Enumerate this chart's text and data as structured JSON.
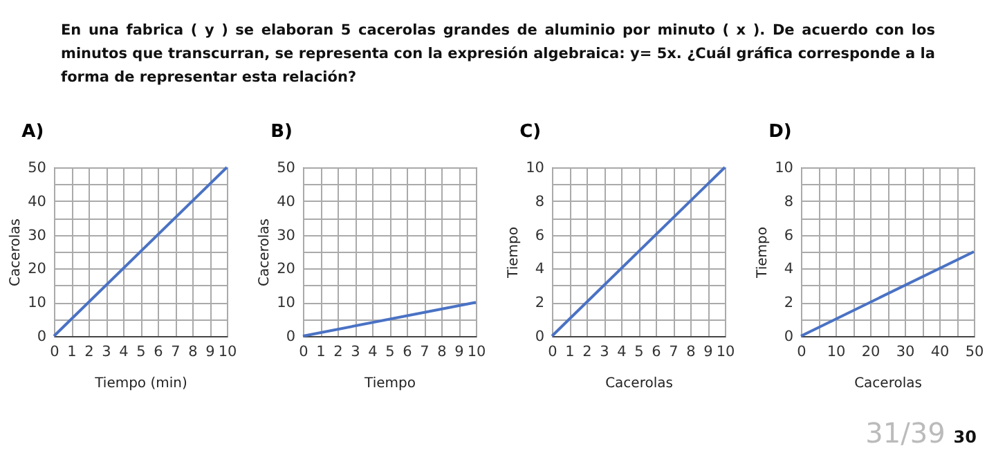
{
  "chart_data": [
    {
      "type": "line",
      "title": "A)",
      "annotations": [
        "En una fabrica ( y ) se elaboran 5 cacerolas grandes de aluminio por minuto ( x ). De acuerdo con los minutos que transcurran, se representa con la expresión algebraica: y= 5x. ¿Cuál gráfica corresponde a la forma de representar esta relación?"
      ],
      "xlabel": "Tiempo (min)",
      "ylabel": "Cacerolas",
      "x": [
        0,
        10
      ],
      "series": [
        {
          "color": "#4a72c4",
          "values": [
            0,
            50
          ]
        }
      ],
      "xlim": [
        0,
        10
      ],
      "xticks": [
        0,
        1,
        2,
        3,
        4,
        5,
        6,
        7,
        8,
        9,
        10
      ],
      "ylim": [
        0,
        50
      ],
      "yticks": [
        0,
        {
          "value": 5,
          "label": null
        },
        10,
        {
          "value": 15,
          "label": null
        },
        20,
        {
          "value": 25,
          "label": null
        },
        30,
        {
          "value": 35,
          "label": null
        },
        40,
        {
          "value": 45,
          "label": null
        },
        50
      ],
      "grid": true,
      "legend": false,
      "marker": "none",
      "line_style": "solid"
    },
    {
      "type": "line",
      "title": "B)",
      "xlabel": "Tiempo",
      "ylabel": "Cacerolas",
      "x": [
        0,
        10
      ],
      "series": [
        {
          "color": "#4a72c4",
          "values": [
            0,
            10
          ]
        }
      ],
      "xlim": [
        0,
        10
      ],
      "xticks": [
        0,
        1,
        2,
        3,
        4,
        5,
        6,
        7,
        8,
        9,
        10
      ],
      "ylim": [
        0,
        50
      ],
      "yticks": [
        0,
        {
          "value": 5,
          "label": null
        },
        10,
        {
          "value": 15,
          "label": null
        },
        20,
        {
          "value": 25,
          "label": null
        },
        30,
        {
          "value": 35,
          "label": null
        },
        40,
        {
          "value": 45,
          "label": null
        },
        50
      ],
      "grid": true,
      "legend": false,
      "marker": "none",
      "line_style": "solid"
    },
    {
      "type": "line",
      "title": "C)",
      "xlabel": "Cacerolas",
      "ylabel": "Tiempo",
      "x": [
        0,
        10
      ],
      "series": [
        {
          "color": "#4a72c4",
          "values": [
            0,
            10
          ]
        }
      ],
      "xlim": [
        0,
        10
      ],
      "xticks": [
        0,
        1,
        2,
        3,
        4,
        5,
        6,
        7,
        8,
        9,
        10
      ],
      "ylim": [
        0,
        10
      ],
      "yticks": [
        0,
        {
          "value": 1,
          "label": null
        },
        2,
        {
          "value": 3,
          "label": null
        },
        4,
        {
          "value": 5,
          "label": null
        },
        6,
        {
          "value": 7,
          "label": null
        },
        8,
        {
          "value": 9,
          "label": null
        },
        10
      ],
      "grid": true,
      "legend": false,
      "marker": "none",
      "line_style": "solid"
    },
    {
      "type": "line",
      "title": "D)",
      "annotations": [
        "31/39",
        "30"
      ],
      "xlabel": "Cacerolas",
      "ylabel": "Tiempo",
      "x": [
        0,
        50
      ],
      "series": [
        {
          "color": "#4a72c4",
          "values": [
            0,
            5
          ]
        }
      ],
      "xlim": [
        0,
        50
      ],
      "xticks": [
        0,
        {
          "value": 5,
          "label": null
        },
        10,
        {
          "value": 15,
          "label": null
        },
        20,
        {
          "value": 25,
          "label": null
        },
        30,
        {
          "value": 35,
          "label": null
        },
        40,
        {
          "value": 45,
          "label": null
        },
        50
      ],
      "ylim": [
        0,
        10
      ],
      "yticks": [
        0,
        {
          "value": 1,
          "label": null
        },
        2,
        {
          "value": 3,
          "label": null
        },
        4,
        {
          "value": 5,
          "label": null
        },
        6,
        {
          "value": 7,
          "label": null
        },
        8,
        {
          "value": 9,
          "label": null
        },
        10
      ],
      "grid": true,
      "legend": false,
      "marker": "none",
      "line_style": "solid"
    }
  ]
}
